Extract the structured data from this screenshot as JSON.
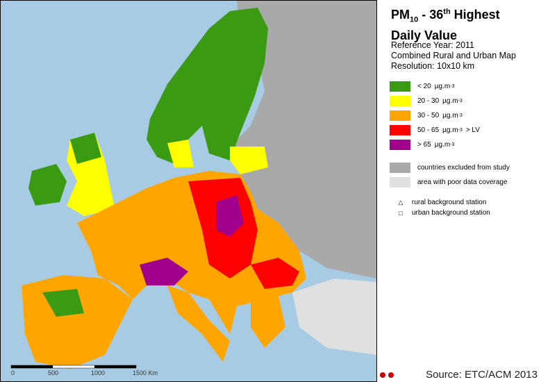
{
  "header": {
    "title": {
      "prefix": "PM",
      "subscript": "10",
      "middle": " - 36",
      "superscript": "th",
      "suffix": " Highest",
      "line2": "Daily Value"
    },
    "details": [
      "Reference Year: 2011",
      "Combined Rural and Urban Map",
      "Resolution: 10x10 km"
    ]
  },
  "legend": {
    "classes": [
      {
        "color": "#3a9b12",
        "range": "<  20",
        "unit": "µg.m",
        "exponent": "-3"
      },
      {
        "color": "#ffff00",
        "range": "20 - 30",
        "unit": "µg.m",
        "exponent": "-3"
      },
      {
        "color": "#ffa500",
        "range": "30 - 50",
        "unit": "µg.m",
        "exponent": "-3"
      },
      {
        "color": "#ff0000",
        "range": "50 - 65",
        "unit": "µg.m",
        "exponent": "-3",
        "note": "> LV"
      },
      {
        "color": "#a0008c",
        "range": ">  65",
        "unit": "µg.m",
        "exponent": "-3"
      }
    ],
    "areas": [
      {
        "color": "#a9a9a9",
        "label": "countries excluded from study"
      },
      {
        "color": "#e0e0e0",
        "label": "area with poor data coverage"
      }
    ],
    "stations": [
      {
        "symbol": "△",
        "label": "rural background station"
      },
      {
        "symbol": "□",
        "label": "urban background station"
      }
    ]
  },
  "scale_bar": [
    "0",
    "500",
    "1000",
    "1500 Km"
  ],
  "source": "Source: ETC/ACM 2013"
}
